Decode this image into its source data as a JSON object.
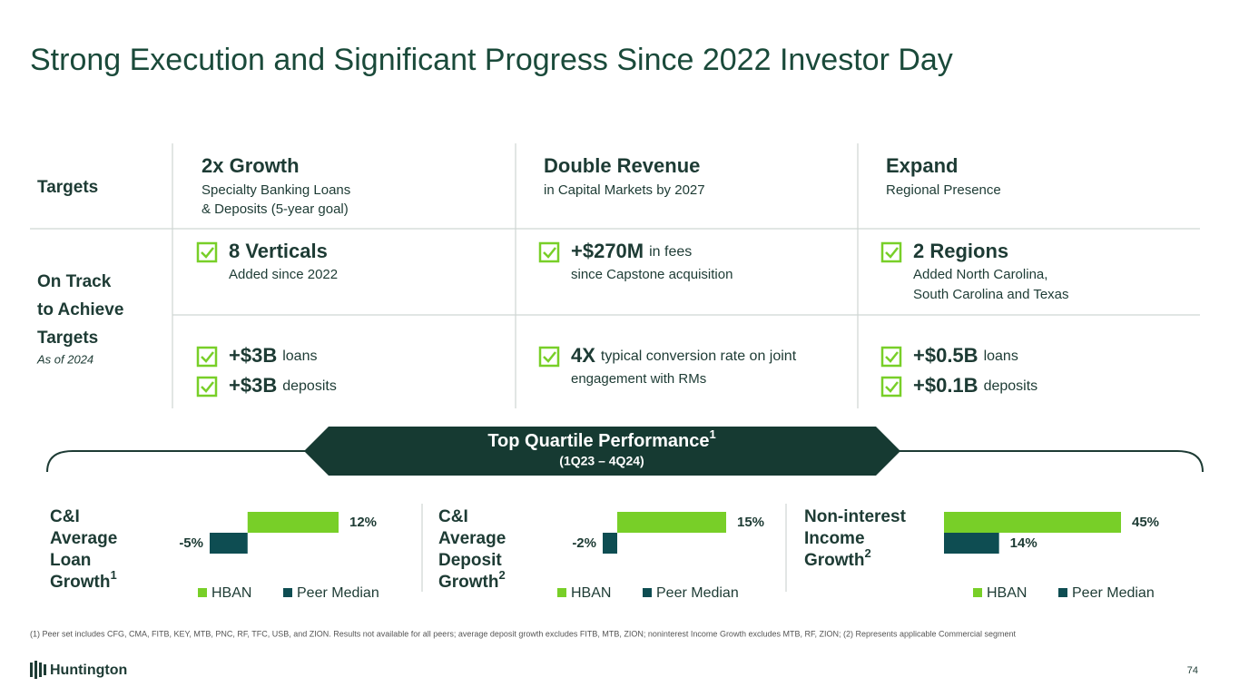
{
  "title": "Strong Execution and Significant Progress Since 2022 Investor Day",
  "targets": {
    "label": "Targets",
    "columns": [
      {
        "heading": "2x Growth",
        "lines": [
          "Specialty Banking Loans",
          "& Deposits (5-year goal)"
        ]
      },
      {
        "heading": "Double Revenue",
        "lines": [
          "in Capital Markets by 2027"
        ]
      },
      {
        "heading": "Expand",
        "lines": [
          "Regional Presence"
        ]
      }
    ]
  },
  "progress": {
    "label": [
      "On Track",
      "to Achieve",
      "Targets"
    ],
    "note": "As of 2024",
    "rows": [
      [
        [
          {
            "bold": "8 Verticals",
            "lines": [
              "Added since 2022"
            ]
          }
        ],
        [
          {
            "bold": "+$270M",
            "text": "in fees",
            "lines": [
              "since Capstone acquisition"
            ]
          }
        ],
        [
          {
            "bold": "2 Regions",
            "lines": [
              "Added North Carolina,",
              "South Carolina and Texas"
            ]
          }
        ]
      ],
      [
        [
          {
            "bold": "+$3B",
            "text": "loans"
          },
          {
            "bold": "+$3B",
            "text": "deposits"
          }
        ],
        [
          {
            "bold": "4X",
            "text": "typical conversion rate on joint",
            "lines": [
              "engagement with RMs"
            ]
          }
        ],
        [
          {
            "bold": "+$0.5B",
            "text": "loans"
          },
          {
            "bold": "+$0.1B",
            "text": "deposits"
          }
        ]
      ]
    ]
  },
  "banner": {
    "title": "Top Quartile Performance",
    "note": "1",
    "subtitle": "(1Q23 – 4Q24)"
  },
  "chart_data": [
    {
      "type": "bar",
      "title": [
        "C&I",
        "Average",
        "Loan",
        "Growth"
      ],
      "title_note": "1",
      "xlim": [
        -5,
        12
      ],
      "series": [
        {
          "name": "HBAN",
          "color": "#78cf28",
          "values": [
            12
          ],
          "value_labels": [
            "12%"
          ]
        },
        {
          "name": "Peer Median",
          "color": "#0e4d52",
          "values": [
            -5
          ],
          "value_labels": [
            "-5%"
          ]
        }
      ]
    },
    {
      "type": "bar",
      "title": [
        "C&I",
        "Average",
        "Deposit",
        "Growth"
      ],
      "title_note": "2",
      "xlim": [
        -2,
        15
      ],
      "series": [
        {
          "name": "HBAN",
          "color": "#78cf28",
          "values": [
            15
          ],
          "value_labels": [
            "15%"
          ]
        },
        {
          "name": "Peer Median",
          "color": "#0e4d52",
          "values": [
            -2
          ],
          "value_labels": [
            "-2%"
          ]
        }
      ]
    },
    {
      "type": "bar",
      "title": [
        "Non-interest",
        "Income",
        "Growth"
      ],
      "title_note": "2",
      "xlim": [
        0,
        45
      ],
      "series": [
        {
          "name": "HBAN",
          "color": "#78cf28",
          "values": [
            45
          ],
          "value_labels": [
            "45%"
          ]
        },
        {
          "name": "Peer Median",
          "color": "#0e4d52",
          "values": [
            14
          ],
          "value_labels": [
            "14%"
          ]
        }
      ]
    }
  ],
  "footnote": "(1) Peer set includes CFG, CMA, FITB, KEY, MTB, PNC, RF, TFC, USB, and ZION. Results not available for all peers; average deposit growth excludes FITB, MTB, ZION; noninterest Income Growth excludes MTB, RF, ZION; (2) Represents applicable Commercial segment",
  "logo": "Huntington",
  "page_number": "74"
}
